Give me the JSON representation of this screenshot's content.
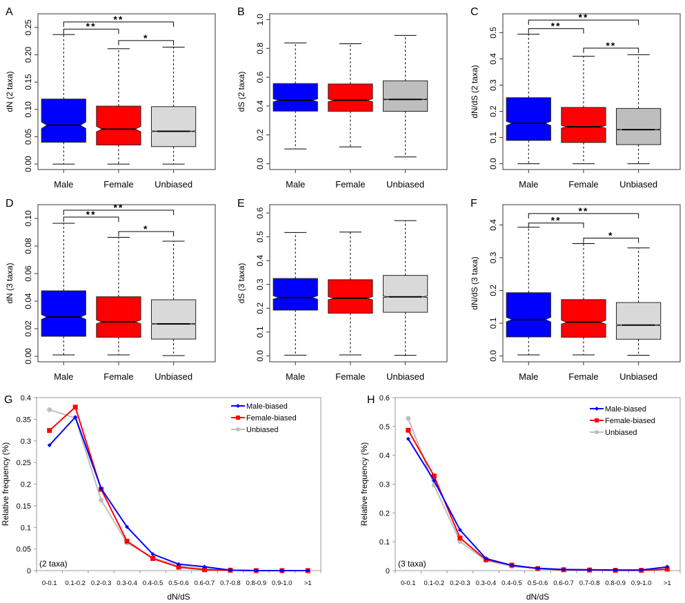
{
  "chart_data": [
    {
      "panel": "A",
      "type": "box",
      "ylabel": "dN (2 taxa)",
      "categories": [
        "Male",
        "Female",
        "Unbiased"
      ],
      "yticks": [
        "0.00",
        "0.05",
        "0.10",
        "0.15",
        "0.20",
        "0.25"
      ],
      "ylim": [
        -0.01,
        0.275
      ],
      "boxes": [
        {
          "min": 0.0,
          "q1": 0.04,
          "median": 0.071,
          "q3": 0.119,
          "max": 0.237,
          "notch": [
            0.065,
            0.077
          ],
          "color": "#0000ff"
        },
        {
          "min": 0.0,
          "q1": 0.035,
          "median": 0.064,
          "q3": 0.106,
          "max": 0.211,
          "notch": [
            0.059,
            0.069
          ],
          "color": "#ff0000"
        },
        {
          "min": 0.0,
          "q1": 0.032,
          "median": 0.06,
          "q3": 0.105,
          "max": 0.214,
          "notch": [
            0.059,
            0.061
          ],
          "color": "#d9d9d9"
        }
      ],
      "significance": [
        {
          "from": 0,
          "to": 1,
          "label": "**",
          "level": 0.247
        },
        {
          "from": 0,
          "to": 2,
          "label": "**",
          "level": 0.26
        },
        {
          "from": 1,
          "to": 2,
          "label": "*",
          "level": 0.226
        }
      ]
    },
    {
      "panel": "B",
      "type": "box",
      "ylabel": "dS (2 taxa)",
      "categories": [
        "Male",
        "Female",
        "Unbiased"
      ],
      "yticks": [
        "0.0",
        "0.2",
        "0.4",
        "0.6",
        "0.8",
        "1.0"
      ],
      "ylim": [
        -0.04,
        1.04
      ],
      "boxes": [
        {
          "min": 0.103,
          "q1": 0.365,
          "median": 0.44,
          "q3": 0.556,
          "max": 0.838,
          "notch": [
            0.43,
            0.45
          ],
          "color": "#0000ff"
        },
        {
          "min": 0.117,
          "q1": 0.364,
          "median": 0.44,
          "q3": 0.553,
          "max": 0.832,
          "notch": [
            0.43,
            0.45
          ],
          "color": "#ff0000"
        },
        {
          "min": 0.047,
          "q1": 0.364,
          "median": 0.446,
          "q3": 0.575,
          "max": 0.89,
          "notch": [
            0.443,
            0.449
          ],
          "color": "#bebebe"
        }
      ],
      "significance": []
    },
    {
      "panel": "C",
      "type": "box",
      "ylabel": "dN/dS (2 taxa)",
      "categories": [
        "Male",
        "Female",
        "Unbiased"
      ],
      "yticks": [
        "0.0",
        "0.1",
        "0.2",
        "0.3",
        "0.4",
        "0.5"
      ],
      "ylim": [
        -0.022,
        0.572
      ],
      "boxes": [
        {
          "min": 0.0,
          "q1": 0.089,
          "median": 0.154,
          "q3": 0.252,
          "max": 0.494,
          "notch": [
            0.146,
            0.162
          ],
          "color": "#0000ff"
        },
        {
          "min": 0.0,
          "q1": 0.081,
          "median": 0.141,
          "q3": 0.215,
          "max": 0.41,
          "notch": [
            0.136,
            0.146
          ],
          "color": "#ff0000"
        },
        {
          "min": 0.0,
          "q1": 0.073,
          "median": 0.13,
          "q3": 0.211,
          "max": 0.416,
          "notch": [
            0.128,
            0.132
          ],
          "color": "#bebebe"
        }
      ],
      "significance": [
        {
          "from": 0,
          "to": 1,
          "label": "**",
          "level": 0.515
        },
        {
          "from": 0,
          "to": 2,
          "label": "**",
          "level": 0.548
        },
        {
          "from": 1,
          "to": 2,
          "label": "**",
          "level": 0.441
        }
      ]
    },
    {
      "panel": "D",
      "type": "box",
      "ylabel": "dN (3 taxa)",
      "categories": [
        "Male",
        "Female",
        "Unbiased"
      ],
      "yticks": [
        "0.00",
        "0.02",
        "0.04",
        "0.06",
        "0.08",
        "0.10"
      ],
      "ylim": [
        -0.004,
        0.11
      ],
      "boxes": [
        {
          "min": 0.001,
          "q1": 0.0145,
          "median": 0.0285,
          "q3": 0.0475,
          "max": 0.0965,
          "notch": [
            0.0268,
            0.0302
          ],
          "color": "#0000ff"
        },
        {
          "min": 0.001,
          "q1": 0.0138,
          "median": 0.025,
          "q3": 0.0432,
          "max": 0.0863,
          "notch": [
            0.0236,
            0.0264
          ],
          "color": "#ff0000"
        },
        {
          "min": 0.0005,
          "q1": 0.0125,
          "median": 0.0235,
          "q3": 0.041,
          "max": 0.0835,
          "notch": [
            0.0231,
            0.0239
          ],
          "color": "#d9d9d9"
        }
      ],
      "significance": [
        {
          "from": 0,
          "to": 1,
          "label": "**",
          "level": 0.101
        },
        {
          "from": 0,
          "to": 2,
          "label": "**",
          "level": 0.106
        },
        {
          "from": 1,
          "to": 2,
          "label": "*",
          "level": 0.0905
        }
      ]
    },
    {
      "panel": "E",
      "type": "box",
      "ylabel": "dS (3 taxa)",
      "categories": [
        "Male",
        "Female",
        "Unbiased"
      ],
      "yticks": [
        "0.0",
        "0.1",
        "0.2",
        "0.3",
        "0.4",
        "0.5",
        "0.6"
      ],
      "ylim": [
        -0.025,
        0.635
      ],
      "boxes": [
        {
          "min": 0.003,
          "q1": 0.192,
          "median": 0.245,
          "q3": 0.325,
          "max": 0.518,
          "notch": [
            0.238,
            0.252
          ],
          "color": "#0000ff"
        },
        {
          "min": 0.004,
          "q1": 0.179,
          "median": 0.242,
          "q3": 0.32,
          "max": 0.52,
          "notch": [
            0.235,
            0.249
          ],
          "color": "#ff0000"
        },
        {
          "min": 0.002,
          "q1": 0.183,
          "median": 0.248,
          "q3": 0.338,
          "max": 0.568,
          "notch": [
            0.245,
            0.251
          ],
          "color": "#d9d9d9"
        }
      ],
      "significance": []
    },
    {
      "panel": "F",
      "type": "box",
      "ylabel": "dN/dS (3 taxa)",
      "categories": [
        "Male",
        "Female",
        "Unbiased"
      ],
      "yticks": [
        "0.0",
        "0.1",
        "0.2",
        "0.3",
        "0.4"
      ],
      "ylim": [
        -0.018,
        0.462
      ],
      "boxes": [
        {
          "min": 0.003,
          "q1": 0.058,
          "median": 0.111,
          "q3": 0.193,
          "max": 0.393,
          "notch": [
            0.104,
            0.118
          ],
          "color": "#0000ff"
        },
        {
          "min": 0.003,
          "q1": 0.057,
          "median": 0.103,
          "q3": 0.172,
          "max": 0.343,
          "notch": [
            0.097,
            0.109
          ],
          "color": "#ff0000"
        },
        {
          "min": 0.002,
          "q1": 0.051,
          "median": 0.094,
          "q3": 0.163,
          "max": 0.33,
          "notch": [
            0.092,
            0.096
          ],
          "color": "#d9d9d9"
        }
      ],
      "significance": [
        {
          "from": 0,
          "to": 1,
          "label": "**",
          "level": 0.406
        },
        {
          "from": 0,
          "to": 2,
          "label": "**",
          "level": 0.435
        },
        {
          "from": 1,
          "to": 2,
          "label": "*",
          "level": 0.36
        }
      ]
    },
    {
      "panel": "G",
      "type": "line",
      "xlabel": "dN/dS",
      "ylabel": "Relative frequency (%)",
      "annotation": "(2 taxa)",
      "categories": [
        "0-0.1",
        "0.1-0.2",
        "0.2-0.3",
        "0.3-0.4",
        "0.4-0.5",
        "0.5-0.6",
        "0.6-0.7",
        "0.7-0.8",
        "0.8-0.9",
        "0.9-1.0",
        ">1"
      ],
      "yticks": [
        "0",
        "0.05",
        "0.1",
        "0.15",
        "0.2",
        "0.25",
        "0.3",
        "0.35",
        "0.4"
      ],
      "ylim": [
        0,
        0.4
      ],
      "legend_position": "top-right",
      "series": [
        {
          "name": "Male-biased",
          "color": "#0000ff",
          "marker": "diamond",
          "values": [
            0.29,
            0.355,
            0.19,
            0.101,
            0.038,
            0.015,
            0.009,
            0.001,
            0.0,
            0.0,
            0.0
          ]
        },
        {
          "name": "Female-biased",
          "color": "#ff0000",
          "marker": "square",
          "values": [
            0.324,
            0.378,
            0.188,
            0.068,
            0.028,
            0.008,
            0.002,
            0.001,
            0.0,
            0.0,
            0.0
          ]
        },
        {
          "name": "Unbiased",
          "color": "#bebebe",
          "marker": "circle",
          "values": [
            0.372,
            0.353,
            0.163,
            0.064,
            0.03,
            0.011,
            0.004,
            0.001,
            0.0,
            0.0,
            0.0
          ]
        }
      ]
    },
    {
      "panel": "H",
      "type": "line",
      "xlabel": "dN/dS",
      "ylabel": "Relative frequency (%)",
      "annotation": "(3 taxa)",
      "categories": [
        "0-0.1",
        "0.1-0.2",
        "0.2-0.3",
        "0.3-0.4",
        "0.4-0.5",
        "0.5-0.6",
        "0.6-0.7",
        "0.7-0.8",
        "0.8-0.9",
        "0.9-1.0",
        ">1"
      ],
      "yticks": [
        "0",
        "0.1",
        "0.2",
        "0.3",
        "0.4",
        "0.5",
        "0.6"
      ],
      "ylim": [
        0,
        0.6
      ],
      "legend_position": "top-right",
      "series": [
        {
          "name": "Male-biased",
          "color": "#0000ff",
          "marker": "diamond",
          "values": [
            0.457,
            0.312,
            0.141,
            0.042,
            0.018,
            0.008,
            0.004,
            0.003,
            0.002,
            0.002,
            0.013
          ]
        },
        {
          "name": "Female-biased",
          "color": "#ff0000",
          "marker": "square",
          "values": [
            0.487,
            0.328,
            0.113,
            0.038,
            0.019,
            0.007,
            0.003,
            0.002,
            0.001,
            0.001,
            0.005
          ]
        },
        {
          "name": "Unbiased",
          "color": "#bebebe",
          "marker": "circle",
          "values": [
            0.528,
            0.296,
            0.101,
            0.035,
            0.015,
            0.007,
            0.003,
            0.002,
            0.001,
            0.001,
            0.012
          ]
        }
      ]
    }
  ]
}
